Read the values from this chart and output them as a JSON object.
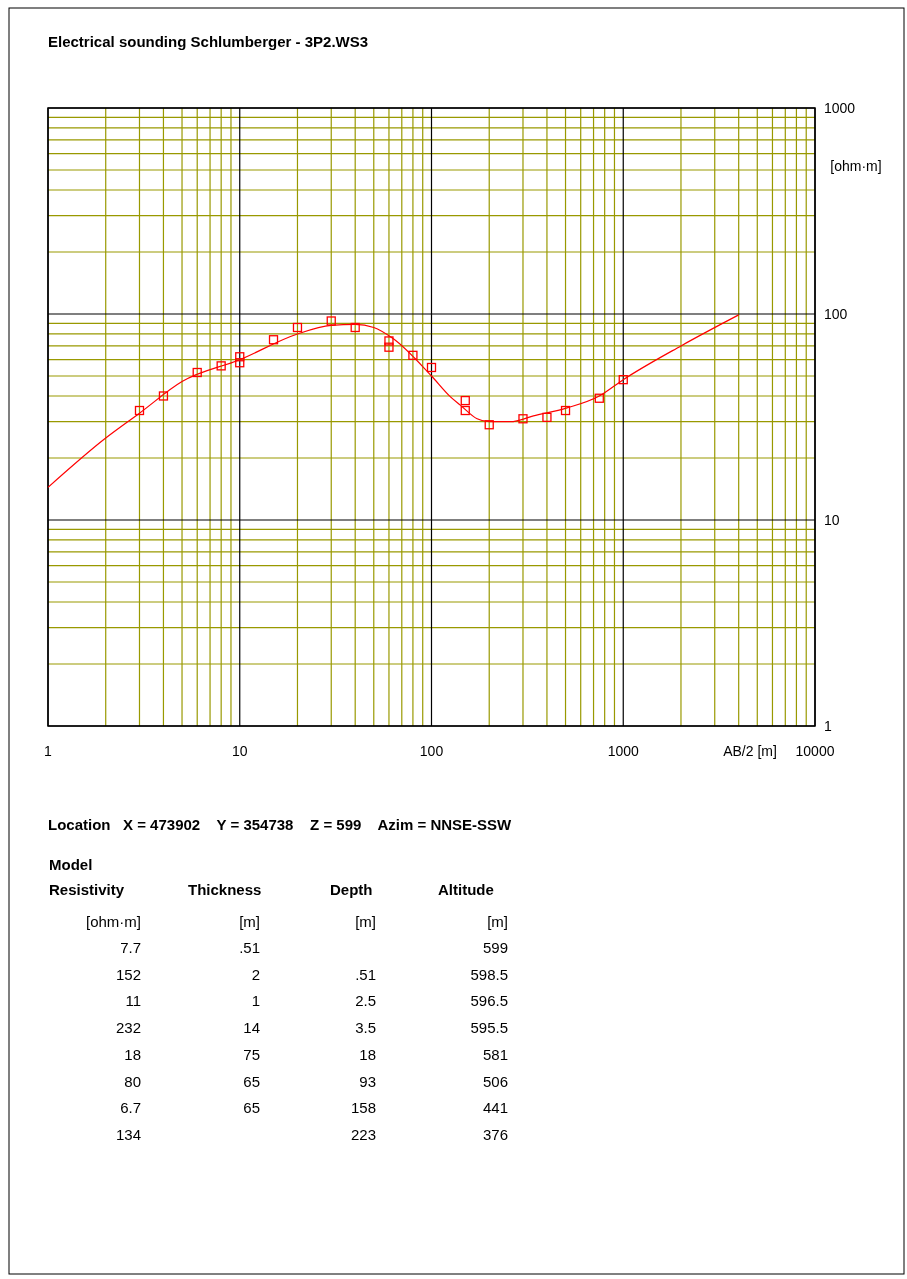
{
  "chart_data": {
    "type": "scatter",
    "title": "Electrical sounding Schlumberger - 3P2.WS3",
    "xlabel": "AB/2 [m]",
    "ylabel": "[ohm·m]",
    "log": "xy",
    "grid": true,
    "xlim": [
      1,
      10000
    ],
    "xticks": [
      1,
      {
        "value": 2,
        "label": null
      },
      {
        "value": 3,
        "label": null
      },
      {
        "value": 4,
        "label": null
      },
      {
        "value": 5,
        "label": null
      },
      {
        "value": 6,
        "label": null
      },
      {
        "value": 7,
        "label": null
      },
      {
        "value": 8,
        "label": null
      },
      {
        "value": 9,
        "label": null
      },
      10,
      {
        "value": 20,
        "label": null
      },
      {
        "value": 30,
        "label": null
      },
      {
        "value": 40,
        "label": null
      },
      {
        "value": 50,
        "label": null
      },
      {
        "value": 60,
        "label": null
      },
      {
        "value": 70,
        "label": null
      },
      {
        "value": 80,
        "label": null
      },
      {
        "value": 90,
        "label": null
      },
      100,
      {
        "value": 200,
        "label": null
      },
      {
        "value": 300,
        "label": null
      },
      {
        "value": 400,
        "label": null
      },
      {
        "value": 500,
        "label": null
      },
      {
        "value": 600,
        "label": null
      },
      {
        "value": 700,
        "label": null
      },
      {
        "value": 800,
        "label": null
      },
      {
        "value": 900,
        "label": null
      },
      1000,
      {
        "value": 2000,
        "label": null
      },
      {
        "value": 3000,
        "label": null
      },
      {
        "value": 4000,
        "label": null
      },
      {
        "value": 5000,
        "label": null
      },
      {
        "value": 6000,
        "label": null
      },
      {
        "value": 7000,
        "label": null
      },
      {
        "value": 8000,
        "label": null
      },
      {
        "value": 9000,
        "label": null
      },
      10000
    ],
    "ylim": [
      1,
      1000
    ],
    "yticks": [
      1,
      {
        "value": 2,
        "label": null
      },
      {
        "value": 3,
        "label": null
      },
      {
        "value": 4,
        "label": null
      },
      {
        "value": 5,
        "label": null
      },
      {
        "value": 6,
        "label": null
      },
      {
        "value": 7,
        "label": null
      },
      {
        "value": 8,
        "label": null
      },
      {
        "value": 9,
        "label": null
      },
      10,
      {
        "value": 20,
        "label": null
      },
      {
        "value": 30,
        "label": null
      },
      {
        "value": 40,
        "label": null
      },
      {
        "value": 50,
        "label": null
      },
      {
        "value": 60,
        "label": null
      },
      {
        "value": 70,
        "label": null
      },
      {
        "value": 80,
        "label": null
      },
      {
        "value": 90,
        "label": null
      },
      100,
      {
        "value": 200,
        "label": null
      },
      {
        "value": 300,
        "label": null
      },
      {
        "value": 400,
        "label": null
      },
      {
        "value": 500,
        "label": null
      },
      {
        "value": 600,
        "label": null
      },
      {
        "value": 700,
        "label": null
      },
      {
        "value": 800,
        "label": null
      },
      {
        "value": 900,
        "label": null
      },
      1000
    ],
    "series": [
      {
        "type": "line",
        "color": "#ff0000",
        "marker": "none",
        "line_style": "solid",
        "x": [
          1,
          2,
          3,
          5,
          10,
          20,
          30,
          40,
          50,
          63,
          100,
          126,
          142,
          173,
          200,
          258,
          340,
          509,
          750,
          1000,
          2000,
          4000
        ],
        "values": [
          14.4,
          25,
          33,
          47,
          60,
          80,
          88,
          89,
          86,
          76,
          50,
          39.5,
          36,
          31,
          30,
          30,
          32,
          35,
          40,
          48,
          70,
          99
        ]
      },
      {
        "color": "#ff0000",
        "marker": "square",
        "x": [
          3,
          4,
          6,
          8,
          10,
          10,
          15,
          20,
          30,
          40,
          60,
          60,
          80,
          100,
          150,
          150,
          200,
          300,
          400,
          500,
          750,
          1000
        ],
        "values": [
          34,
          40,
          52,
          56,
          62,
          58,
          75,
          86,
          92.5,
          86,
          74,
          69,
          63,
          55,
          38,
          34,
          29,
          31,
          31.5,
          34,
          39,
          48
        ]
      }
    ],
    "annotations": [
      "Location   X = 473902    Y = 354738    Z = 599    Azim = NNSE-SSW",
      "Model",
      "Resistivity\tThickness\tDepth\tAltitude",
      "[ohm·m]\t[m]\t[m]\t[m]",
      "7.7\t.51\t\t599",
      "152\t2\t.51\t598.5",
      "11\t1\t2.5\t596.5",
      "232\t14\t3.5\t595.5",
      "18\t75\t18\t581",
      "80\t65\t93\t506",
      "6.7\t65\t158\t441",
      "134\t\t223\t376"
    ]
  }
}
